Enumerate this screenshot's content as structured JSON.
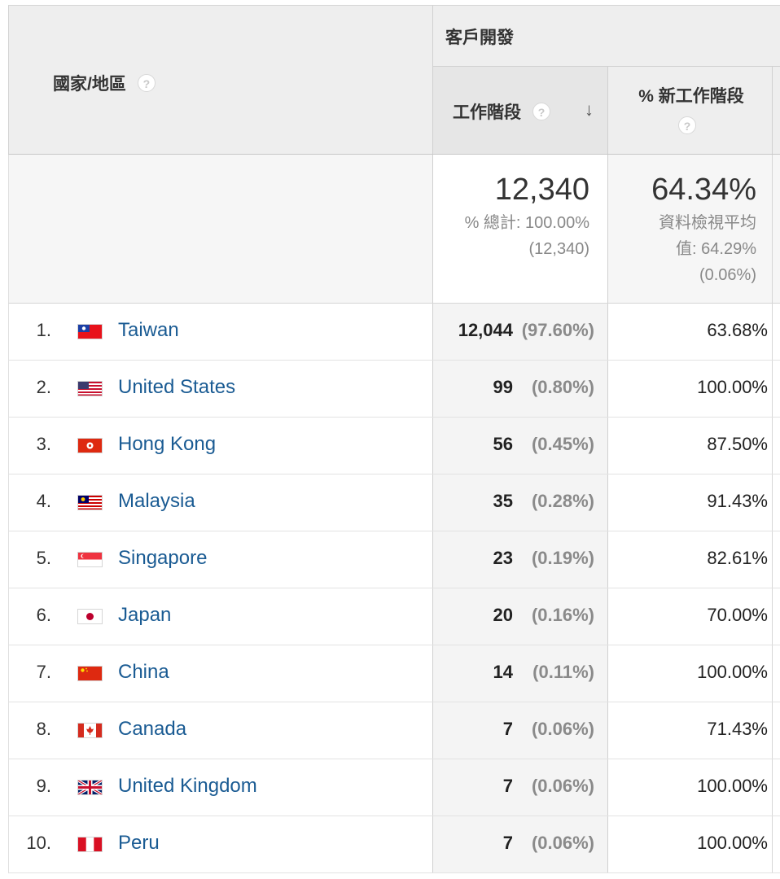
{
  "header": {
    "dimension": "國家/地區",
    "group": "客戶開發",
    "col_sessions": "工作階段",
    "col_new_sessions": "% 新工作階段",
    "help_glyph": "?",
    "sort_glyph": "↓"
  },
  "totals": {
    "sessions": "12,340",
    "sessions_pct_label": "% 總計: 100.00%",
    "sessions_total": "(12,340)",
    "new_sessions": "64.34%",
    "new_sessions_avg_label_1": "資料檢視平均",
    "new_sessions_avg_label_2": "值: 64.29%",
    "new_sessions_delta": "(0.06%)"
  },
  "rows": [
    {
      "index": "1.",
      "country": "Taiwan",
      "sessions": "12,044",
      "pct": "(97.60%)",
      "new": "63.68%",
      "flag": "taiwan-flag-icon"
    },
    {
      "index": "2.",
      "country": "United States",
      "sessions": "99",
      "pct": "(0.80%)",
      "new": "100.00%",
      "flag": "usa-flag-icon"
    },
    {
      "index": "3.",
      "country": "Hong Kong",
      "sessions": "56",
      "pct": "(0.45%)",
      "new": "87.50%",
      "flag": "hong-kong-flag-icon"
    },
    {
      "index": "4.",
      "country": "Malaysia",
      "sessions": "35",
      "pct": "(0.28%)",
      "new": "91.43%",
      "flag": "malaysia-flag-icon"
    },
    {
      "index": "5.",
      "country": "Singapore",
      "sessions": "23",
      "pct": "(0.19%)",
      "new": "82.61%",
      "flag": "singapore-flag-icon"
    },
    {
      "index": "6.",
      "country": "Japan",
      "sessions": "20",
      "pct": "(0.16%)",
      "new": "70.00%",
      "flag": "japan-flag-icon"
    },
    {
      "index": "7.",
      "country": "China",
      "sessions": "14",
      "pct": "(0.11%)",
      "new": "100.00%",
      "flag": "china-flag-icon"
    },
    {
      "index": "8.",
      "country": "Canada",
      "sessions": "7",
      "pct": "(0.06%)",
      "new": "71.43%",
      "flag": "canada-flag-icon"
    },
    {
      "index": "9.",
      "country": "United Kingdom",
      "sessions": "7",
      "pct": "(0.06%)",
      "new": "100.00%",
      "flag": "uk-flag-icon"
    },
    {
      "index": "10.",
      "country": "Peru",
      "sessions": "7",
      "pct": "(0.06%)",
      "new": "100.00%",
      "flag": "peru-flag-icon"
    }
  ],
  "colors": {
    "link": "#1a5b93",
    "header_bg": "#eeeeee",
    "sorted_col_bg": "#f4f4f4"
  }
}
